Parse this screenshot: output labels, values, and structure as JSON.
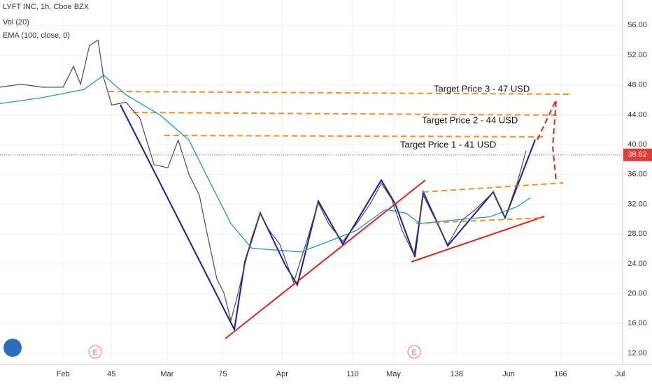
{
  "chart_data": {
    "type": "line",
    "header": [
      "LYFT INC, 1h, Cboe BZX",
      "Vol (20)",
      "EMA (100, close, 0)"
    ],
    "price": {
      "color": "#4a4a4a",
      "x": [
        15,
        20.7,
        26.3,
        32,
        34.8,
        36.7,
        39.1,
        41.4,
        42.9,
        45.1,
        48.9,
        52.7,
        56.5,
        60.2,
        63,
        65.9,
        68.7,
        70.6,
        73.4,
        75.3,
        77.2,
        79.1,
        80.9,
        82.8,
        85.1,
        87.5,
        90.4,
        94.1,
        97.9,
        100.7,
        103.5,
        107.3,
        111.1,
        114.9,
        117.7,
        120.5,
        123.3,
        126.5,
        129,
        132.8,
        135.6,
        139.3,
        143.1,
        147.8,
        151,
        154.4,
        156.7
      ],
      "values": [
        47.7,
        48.1,
        47.7,
        47.7,
        50.5,
        48.1,
        53.3,
        54,
        49,
        45.3,
        45.7,
        43.5,
        37.3,
        36.9,
        40.6,
        36,
        33.2,
        28.5,
        22,
        20.1,
        16.4,
        20,
        23.8,
        27.5,
        30.8,
        28.5,
        26.6,
        21.5,
        27.5,
        32.2,
        29.4,
        27,
        29.4,
        32.2,
        34.8,
        32.7,
        28.5,
        25.2,
        33.2,
        29.4,
        26.6,
        29.8,
        31.3,
        33.6,
        30.1,
        35,
        39.2
      ]
    },
    "ema": {
      "color": "#2196c8",
      "x": [
        15,
        26.3,
        37.6,
        42.9,
        48.9,
        58.3,
        65.9,
        71.5,
        77.2,
        82.8,
        90.4,
        96,
        103.5,
        111.1,
        118.8,
        124.4,
        128.1,
        135.6,
        146.9,
        154.4,
        157.9
      ],
      "values": [
        45.5,
        46.3,
        47.4,
        49.3,
        46.7,
        43.9,
        40.6,
        35,
        29.4,
        26.1,
        25.8,
        25.6,
        27,
        28.5,
        31.3,
        30.8,
        29.4,
        29.8,
        30.3,
        31.7,
        32.9
      ]
    },
    "last_price": 38.62,
    "annotations": [
      "Target Price 3 - 47 USD",
      "Target Price 2 - 44 USD",
      "Target Price 1 - 41 USD"
    ],
    "earnings_marker": "E",
    "xlim": [
      15,
      182.7
    ],
    "xticks": [
      {
        "value": 32,
        "label": "Feb"
      },
      45,
      {
        "value": 60,
        "label": "Mar"
      },
      75,
      {
        "value": 91,
        "label": "Apr"
      },
      110,
      {
        "value": 121,
        "label": "May"
      },
      138,
      {
        "value": 152,
        "label": "Jun"
      },
      166,
      {
        "value": 182,
        "label": "Jul"
      }
    ],
    "ylim": [
      10.5,
      59.4
    ],
    "yticks": [
      {
        "value": 12,
        "label": "12.00"
      },
      {
        "value": 16,
        "label": "16.00"
      },
      {
        "value": 20,
        "label": "20.00"
      },
      {
        "value": 24,
        "label": "24.00"
      },
      {
        "value": 28,
        "label": "28.00"
      },
      {
        "value": 32,
        "label": "32.00"
      },
      {
        "value": 36,
        "label": "36.00"
      },
      {
        "value": 40,
        "label": "40.00"
      },
      {
        "value": 44,
        "label": "44.00"
      },
      {
        "value": 48,
        "label": "48.00"
      },
      {
        "value": 52,
        "label": "52.00"
      },
      {
        "value": 56,
        "label": "56.00"
      }
    ],
    "grid": true
  }
}
